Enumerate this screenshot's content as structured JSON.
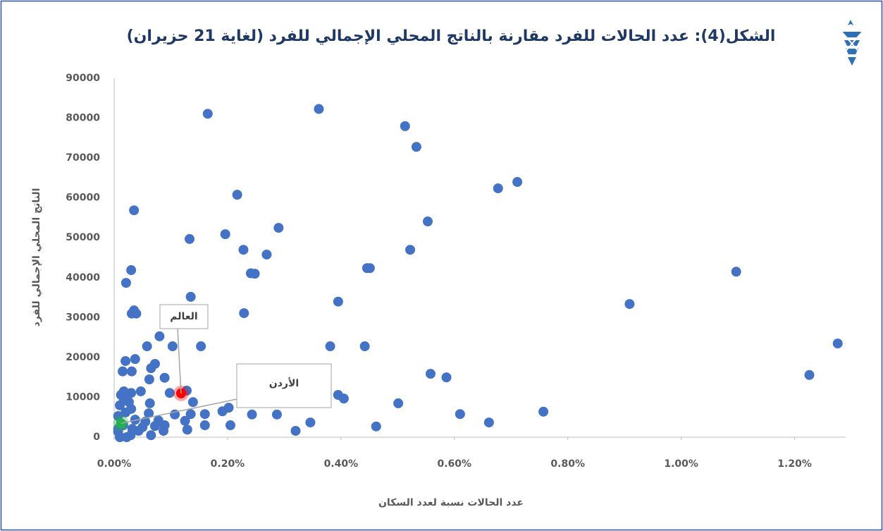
{
  "chart_data": {
    "type": "scatter",
    "title": "الشكل(4): عدد الحالات للفرد مقارنة بالناتج المحلي الإجمالي للفرد (لغاية 21 حزيران)",
    "xlabel": "عدد الحالات نسبة لعدد السكان",
    "ylabel": "الناتج المحلي الإجمالي للفرد",
    "color": "#4472c4",
    "xlim": [
      0,
      1.29
    ],
    "ylim": [
      0,
      90000
    ],
    "xticks": [
      {
        "value": 0,
        "label": "0.00%"
      },
      {
        "value": 0.2,
        "label": "0.20%"
      },
      {
        "value": 0.4,
        "label": "0.40%"
      },
      {
        "value": 0.6,
        "label": "0.60%"
      },
      {
        "value": 0.8,
        "label": "0.80%"
      },
      {
        "value": 1.0,
        "label": "1.00%"
      },
      {
        "value": 1.2,
        "label": "1.20%"
      }
    ],
    "yticks": [
      0,
      10000,
      20000,
      30000,
      40000,
      50000,
      60000,
      70000,
      80000,
      90000
    ],
    "x": [
      0.165,
      0.361,
      0.513,
      0.533,
      0.217,
      0.035,
      0.677,
      0.711,
      0.553,
      0.29,
      0.196,
      0.133,
      0.228,
      0.269,
      0.522,
      0.446,
      0.451,
      0.03,
      0.241,
      0.248,
      1.097,
      0.021,
      0.395,
      0.135,
      0.909,
      0.229,
      0.031,
      0.035,
      0.039,
      1.276,
      0.381,
      0.442,
      0.153,
      0.058,
      0.103,
      0.08,
      1.226,
      0.558,
      0.586,
      0.02,
      0.037,
      0.072,
      0.065,
      0.015,
      0.031,
      0.062,
      0.089,
      0.047,
      0.098,
      0.128,
      0.395,
      0.405,
      0.501,
      0.063,
      0.139,
      0.757,
      0.61,
      0.661,
      0.462,
      0.32,
      0.346,
      0.287,
      0.243,
      0.202,
      0.191,
      0.16,
      0.16,
      0.205,
      0.129,
      0.125,
      0.135,
      0.107,
      0.089,
      0.087,
      0.065,
      0.043,
      0.029,
      0.01,
      0.022,
      0.012,
      0.017,
      0.01,
      0.026,
      0.03,
      0.02,
      0.007,
      0.037,
      0.055,
      0.061,
      0.078,
      0.072,
      0.05,
      0.016,
      0.007,
      0.032,
      0.017,
      0.03,
      0.007
    ],
    "y": [
      81100,
      82300,
      78000,
      72800,
      60800,
      56900,
      62400,
      64000,
      54100,
      52500,
      50900,
      49700,
      47000,
      45800,
      47000,
      42400,
      42400,
      41900,
      41100,
      41000,
      41500,
      38700,
      34000,
      35200,
      33400,
      31100,
      31000,
      31800,
      31000,
      23500,
      22800,
      22800,
      22800,
      22800,
      22800,
      25300,
      15600,
      15900,
      15000,
      19100,
      19600,
      18400,
      17300,
      16500,
      16500,
      14500,
      14900,
      11500,
      11100,
      11700,
      10600,
      9700,
      8500,
      8500,
      8800,
      6400,
      5800,
      3700,
      2700,
      1600,
      3700,
      5700,
      5700,
      7400,
      6500,
      5800,
      3000,
      3000,
      1900,
      4100,
      5800,
      5700,
      3000,
      1600,
      500,
      1600,
      500,
      0,
      0,
      10600,
      9700,
      8000,
      8800,
      7100,
      6200,
      5300,
      4400,
      3900,
      6000,
      4200,
      2800,
      2500,
      3000,
      1400,
      2100,
      11500,
      11100,
      2100
    ],
    "highlights": [
      {
        "label": "العالم",
        "x": 0.118,
        "y": 11000,
        "color": "#ff0000"
      },
      {
        "label": "الأردن",
        "x": 0.012,
        "y": 3500,
        "color": "#22b14c"
      }
    ]
  }
}
